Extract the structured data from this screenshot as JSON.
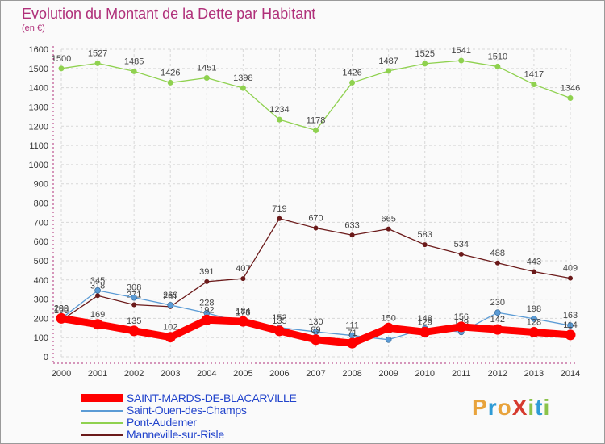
{
  "chart_data": {
    "type": "line",
    "title": "Evolution du Montant de la Dette par Habitant",
    "subtitle": "(en €)",
    "x": [
      "2000",
      "2001",
      "2002",
      "2003",
      "2004",
      "2005",
      "2006",
      "2007",
      "2008",
      "2009",
      "2010",
      "2011",
      "2012",
      "2013",
      "2014"
    ],
    "ylim": [
      0,
      1600
    ],
    "yticks": [
      0,
      100,
      200,
      300,
      400,
      500,
      600,
      700,
      800,
      900,
      1000,
      1100,
      1200,
      1300,
      1400,
      1500,
      1600
    ],
    "grid": true,
    "legend_position": "bottom-left",
    "series": [
      {
        "name": "SAINT-MARDS-DE-BLACARVILLE",
        "color": "#ff0000",
        "values": [
          200,
          169,
          135,
          102,
          192,
          184,
          135,
          89,
          71,
          150,
          129,
          156,
          142,
          128,
          114
        ]
      },
      {
        "name": "Saint-Ouen-des-Champs",
        "color": "#5b9bd5",
        "values": [
          199,
          345,
          308,
          269,
          228,
          178,
          152,
          130,
          111,
          89,
          148,
          129,
          230,
          198,
          163
        ]
      },
      {
        "name": "Pont-Audemer",
        "color": "#8fd14f",
        "values": [
          1500,
          1527,
          1485,
          1426,
          1451,
          1398,
          1234,
          1178,
          1426,
          1487,
          1525,
          1541,
          1510,
          1417,
          1346
        ]
      },
      {
        "name": "Manneville-sur-Risle",
        "color": "#6b1a1a",
        "values": [
          190,
          318,
          271,
          261,
          391,
          407,
          719,
          670,
          633,
          665,
          583,
          534,
          488,
          443,
          409
        ]
      }
    ]
  },
  "logo": {
    "text": "ProXiti",
    "colors": [
      "#e8a33c",
      "#2e9bd6",
      "#e8a33c",
      "#d63a2e",
      "#8bc34a",
      "#2e9bd6",
      "#8bc34a"
    ]
  }
}
